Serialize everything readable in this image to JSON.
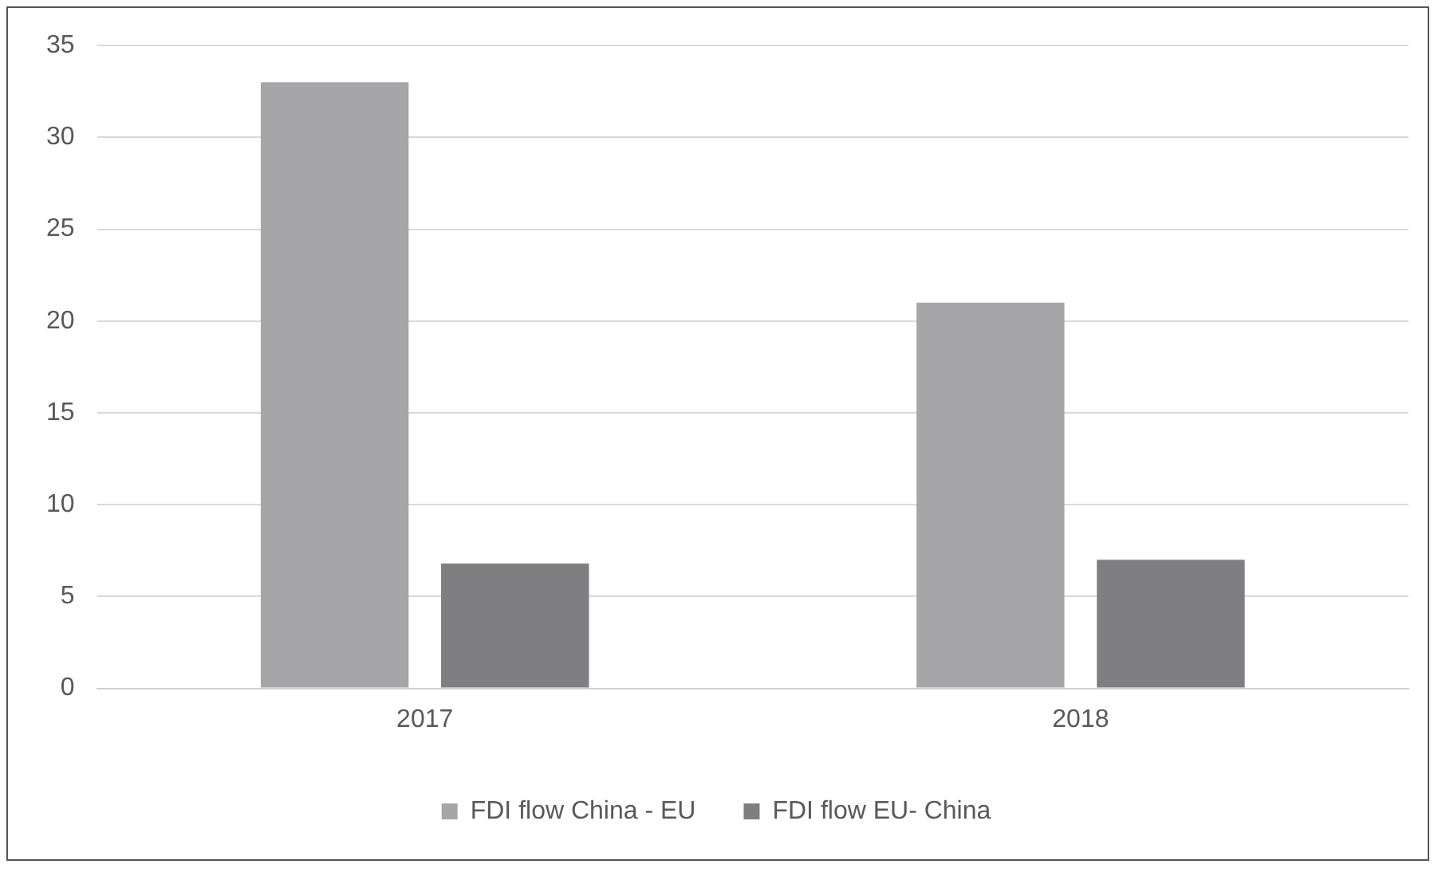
{
  "chart_data": {
    "type": "bar",
    "categories": [
      "2017",
      "2018"
    ],
    "series": [
      {
        "name": "FDI flow China - EU",
        "color": "#a6a6a8",
        "values": [
          33,
          21
        ]
      },
      {
        "name": "FDI flow EU- China",
        "color": "#7f7f82",
        "values": [
          6.8,
          7
        ]
      }
    ],
    "ylim": [
      0,
      35
    ],
    "yticks": [
      0,
      5,
      10,
      15,
      20,
      25,
      30,
      35
    ],
    "grid": "y",
    "legend": "bottom"
  }
}
